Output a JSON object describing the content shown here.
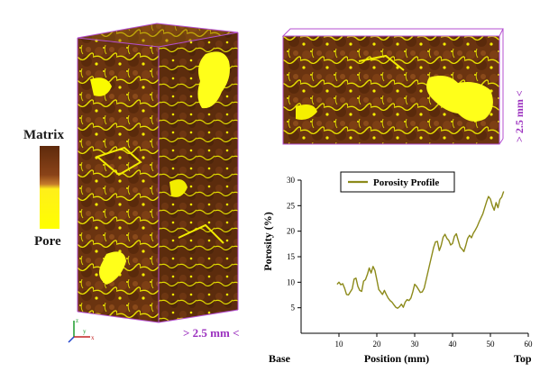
{
  "legend": {
    "top_label": "Matrix",
    "bottom_label": "Pore",
    "colors": {
      "matrix": "#6b3410",
      "pore": "#ffff00"
    }
  },
  "scale": {
    "volume_label": "> 2.5 mm <",
    "slice_label": "> 2.5 mm <"
  },
  "axes_triad": {
    "z": "z",
    "y": "y",
    "x": "x"
  },
  "chart_data": {
    "type": "line",
    "series": [
      {
        "name": "Porosity Profile",
        "color": "#8c8a1a",
        "x": [
          9.5,
          10,
          10.5,
          11,
          11.5,
          12,
          12.5,
          13,
          13.5,
          14,
          14.5,
          15,
          15.5,
          16,
          16.5,
          17,
          17.5,
          18,
          18.5,
          19,
          19.5,
          20,
          20.5,
          21,
          21.5,
          22,
          22.5,
          23,
          23.5,
          24,
          24.5,
          25,
          25.5,
          26,
          26.5,
          27,
          27.5,
          28,
          28.5,
          29,
          29.5,
          30,
          30.5,
          31,
          31.5,
          32,
          32.5,
          33,
          33.5,
          34,
          34.5,
          35,
          35.5,
          36,
          36.5,
          37,
          37.5,
          38,
          38.5,
          39,
          39.5,
          40,
          40.5,
          41,
          41.5,
          42,
          42.5,
          43,
          43.5,
          44,
          44.5,
          45,
          45.5,
          46,
          46.5,
          47,
          47.5,
          48,
          48.5,
          49,
          49.5,
          50,
          50.5,
          51,
          51.5,
          52,
          52.5,
          53,
          53.5
        ],
        "y": [
          9.6,
          10,
          9.5,
          9.7,
          8.8,
          7.6,
          7.5,
          8.1,
          8.7,
          10.6,
          10.8,
          9.2,
          8.4,
          8.2,
          10.2,
          10.5,
          11.5,
          12.8,
          11.8,
          13.1,
          12.3,
          10.5,
          8.6,
          8.1,
          7.6,
          8.4,
          7.6,
          6.9,
          6.4,
          6.1,
          5.6,
          5.1,
          4.9,
          5.2,
          5.7,
          5.1,
          6.1,
          6.6,
          6.4,
          6.9,
          8.1,
          9.6,
          9.2,
          8.6,
          8.0,
          8.1,
          8.8,
          10.4,
          12.0,
          13.6,
          15.2,
          16.8,
          17.9,
          18.0,
          16.2,
          17.2,
          18.8,
          19.4,
          18.6,
          18.2,
          17.3,
          17.6,
          19.0,
          19.5,
          18.2,
          16.9,
          16.5,
          16.0,
          17.2,
          18.6,
          19.2,
          18.7,
          19.6,
          20.2,
          20.9,
          21.8,
          22.6,
          23.4,
          24.6,
          25.8,
          26.8,
          26.3,
          25.0,
          24.1,
          25.6,
          24.6,
          26.2,
          26.7,
          27.8
        ]
      }
    ],
    "xlabel": "Position (mm)",
    "ylabel": "Porosity (%)",
    "xlim": [
      0,
      60
    ],
    "ylim": [
      0,
      30
    ],
    "xticks": [
      10,
      20,
      30,
      40,
      50,
      60
    ],
    "yticks": [
      5,
      10,
      15,
      20,
      25,
      30
    ],
    "x_end_labels": {
      "left": "Base",
      "right": "Top"
    },
    "grid": false,
    "legend_position": "top"
  }
}
